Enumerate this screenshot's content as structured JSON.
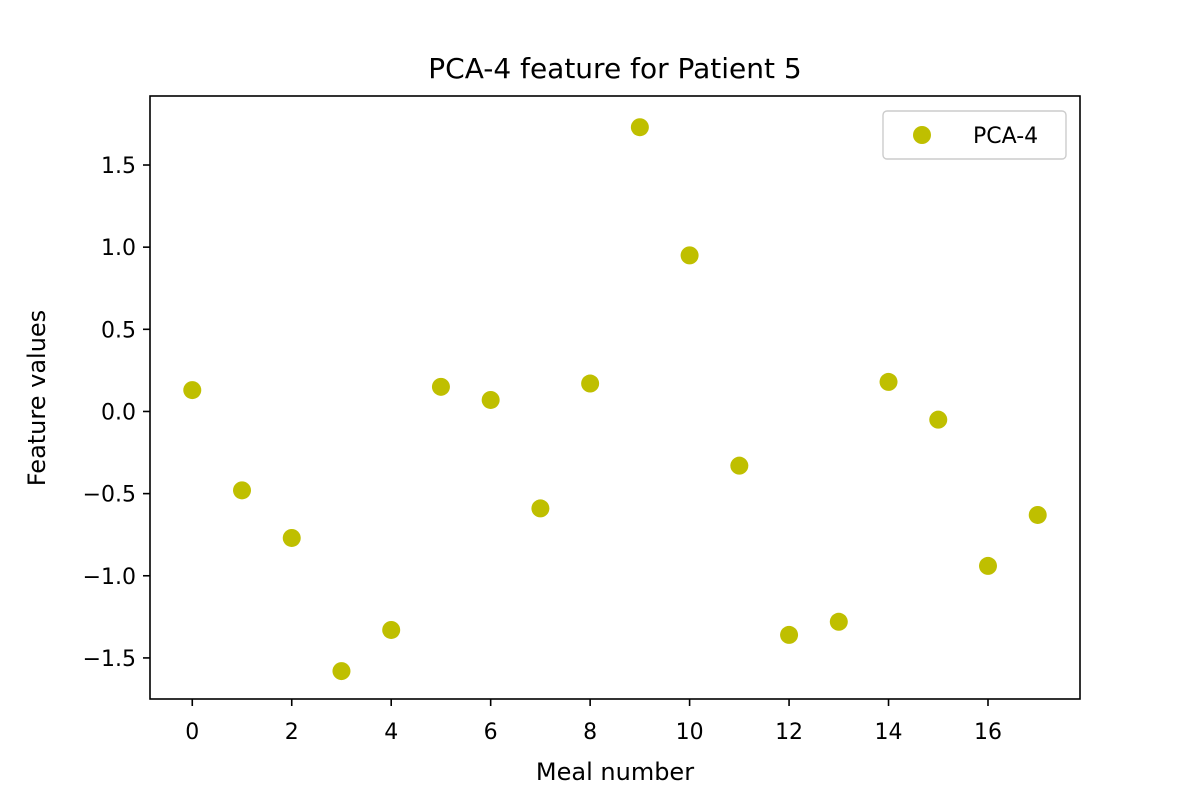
{
  "chart_data": {
    "type": "scatter",
    "title": "PCA-4 feature for Patient 5",
    "xlabel": "Meal number",
    "ylabel": "Feature values",
    "xlim": [
      -0.85,
      17.85
    ],
    "ylim": [
      -1.75,
      1.92
    ],
    "xticks": [
      0,
      2,
      4,
      6,
      8,
      10,
      12,
      14,
      16
    ],
    "xtick_labels": [
      "0",
      "2",
      "4",
      "6",
      "8",
      "10",
      "12",
      "14",
      "16"
    ],
    "yticks": [
      1.5,
      1.0,
      0.5,
      0.0,
      -0.5,
      -1.0,
      -1.5
    ],
    "ytick_labels": [
      "1.5",
      "1.0",
      "0.5",
      "0.0",
      "−0.5",
      "−1.0",
      "−1.5"
    ],
    "grid": false,
    "legend_position": "top-right",
    "series": [
      {
        "name": "PCA-4",
        "color": "#bfbf00",
        "x": [
          0,
          1,
          2,
          3,
          4,
          5,
          6,
          7,
          8,
          9,
          10,
          11,
          12,
          13,
          14,
          15,
          16,
          17
        ],
        "y": [
          0.13,
          -0.48,
          -0.77,
          -1.58,
          -1.33,
          0.15,
          0.07,
          -0.59,
          0.17,
          1.73,
          0.95,
          -0.33,
          -1.36,
          -1.28,
          0.18,
          -0.05,
          -0.94,
          -0.63
        ]
      }
    ]
  }
}
